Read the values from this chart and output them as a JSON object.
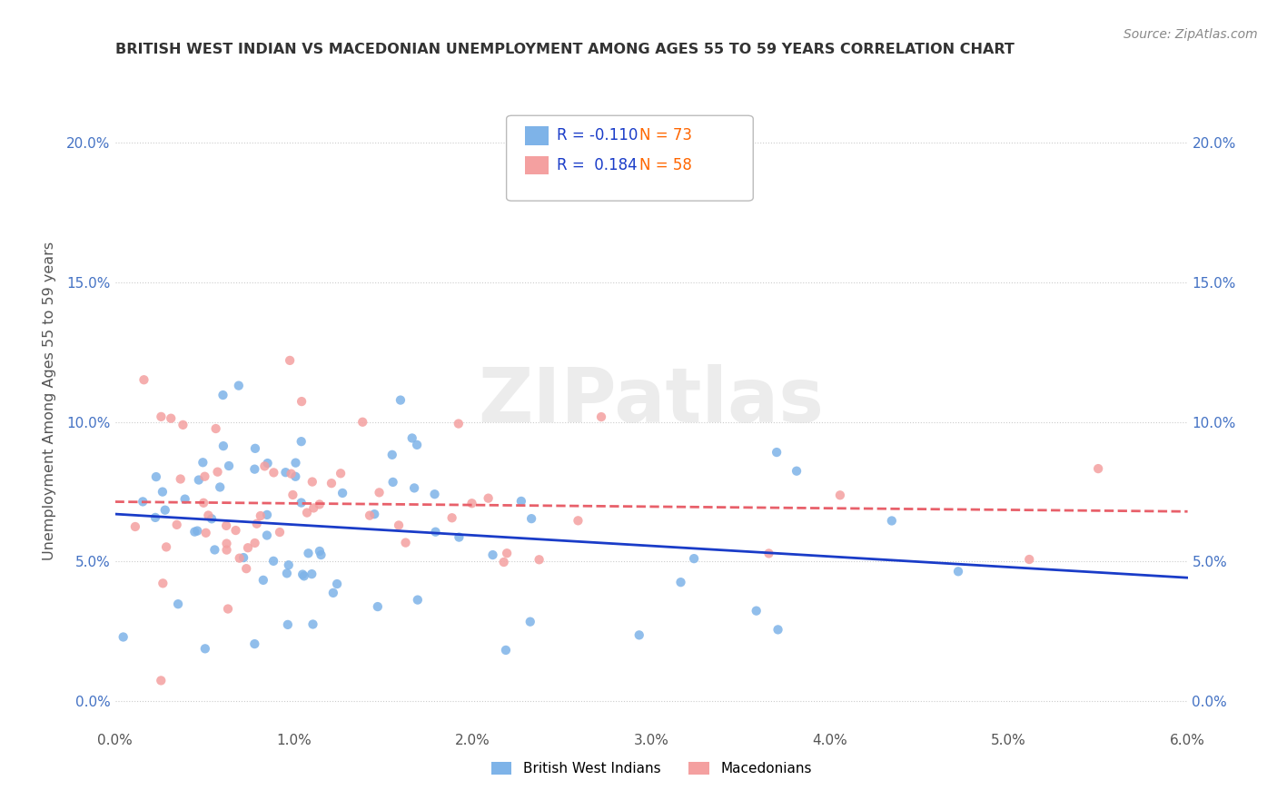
{
  "title": "BRITISH WEST INDIAN VS MACEDONIAN UNEMPLOYMENT AMONG AGES 55 TO 59 YEARS CORRELATION CHART",
  "source": "Source: ZipAtlas.com",
  "ylabel": "Unemployment Among Ages 55 to 59 years",
  "blue_color": "#7EB3E8",
  "pink_color": "#F4A0A0",
  "blue_line_color": "#1A3CC8",
  "pink_line_color": "#E8606A",
  "R_blue": -0.11,
  "N_blue": 73,
  "R_pink": 0.184,
  "N_pink": 58,
  "xlim": [
    0.0,
    0.06
  ],
  "ylim": [
    -0.01,
    0.225
  ],
  "xticks": [
    0.0,
    0.01,
    0.02,
    0.03,
    0.04,
    0.05,
    0.06
  ],
  "xticklabels": [
    "0.0%",
    "1.0%",
    "2.0%",
    "3.0%",
    "4.0%",
    "5.0%",
    "6.0%"
  ],
  "yticks": [
    0.0,
    0.05,
    0.1,
    0.15,
    0.2
  ],
  "yticklabels": [
    "0.0%",
    "5.0%",
    "10.0%",
    "15.0%",
    "20.0%"
  ],
  "watermark_text": "ZIPatlas",
  "watermark_color": "#DDDDDD",
  "legend_label1": "British West Indians",
  "legend_label2": "Macedonians",
  "R_text_color": "#1A3CC8",
  "N_text_color": "#FF6600",
  "tick_color": "#555555",
  "yaxis_color": "#4472C4",
  "title_color": "#333333",
  "source_color": "#888888",
  "grid_color": "#CCCCCC"
}
